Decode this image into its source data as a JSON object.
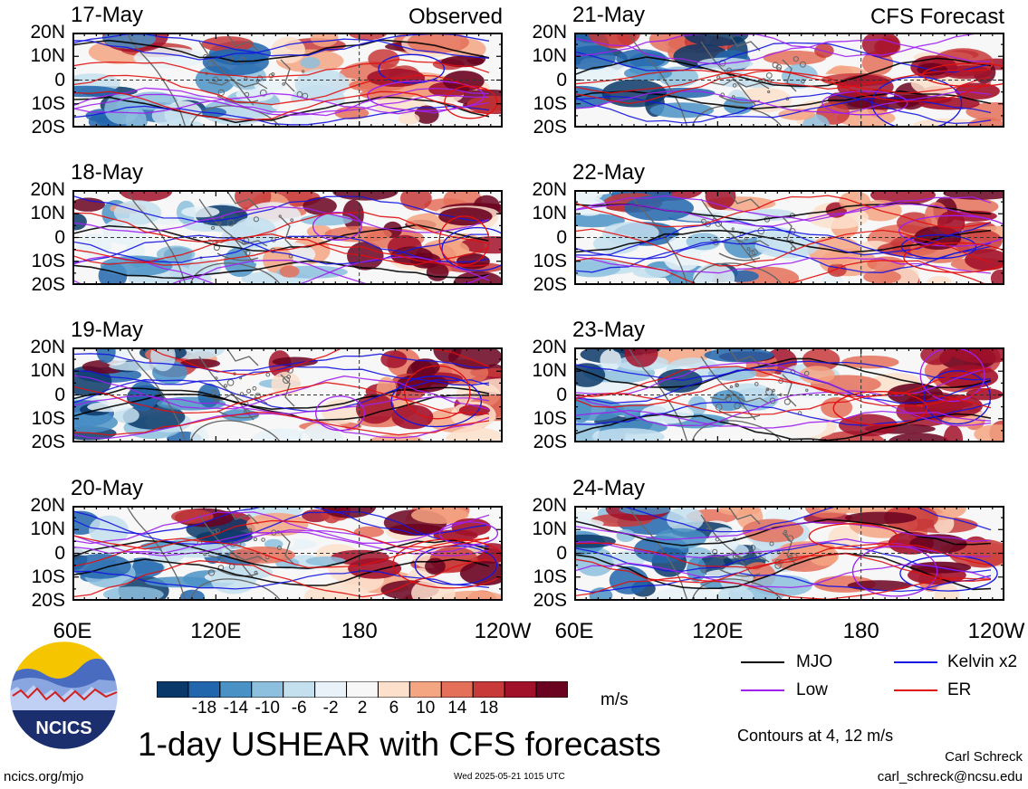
{
  "chart_data": {
    "type": "heatmap",
    "title": "1-day USHEAR with CFS forecasts",
    "variable": "USHEAR",
    "units": "m/s",
    "left_column_label": "Observed",
    "right_column_label": "CFS Forecast",
    "panels": [
      {
        "date": "17-May",
        "column": "Observed"
      },
      {
        "date": "18-May",
        "column": "Observed"
      },
      {
        "date": "19-May",
        "column": "Observed"
      },
      {
        "date": "20-May",
        "column": "Observed"
      },
      {
        "date": "21-May",
        "column": "CFS Forecast"
      },
      {
        "date": "22-May",
        "column": "CFS Forecast"
      },
      {
        "date": "23-May",
        "column": "CFS Forecast"
      },
      {
        "date": "24-May",
        "column": "CFS Forecast"
      }
    ],
    "x_tick_labels": [
      "60E",
      "120E",
      "180",
      "120W"
    ],
    "y_tick_labels": [
      "20N",
      "10N",
      "0",
      "10S",
      "20S"
    ],
    "colorbar_ticks": [
      "-18",
      "-14",
      "-10",
      "-6",
      "-2",
      "2",
      "6",
      "10",
      "14",
      "18"
    ],
    "colorbar_colors": [
      "#0a3868",
      "#2266ad",
      "#4a92c6",
      "#8dc0de",
      "#c4dfee",
      "#e8f2f8",
      "#f7f7f7",
      "#fde0cc",
      "#f4a582",
      "#e4705a",
      "#c83a3a",
      "#a2112a",
      "#6a0220"
    ],
    "legend": [
      {
        "label": "MJO",
        "color": "#000000"
      },
      {
        "label": "Kelvin x2",
        "color": "#1515e0"
      },
      {
        "label": "Low",
        "color": "#a020f0"
      },
      {
        "label": "ER",
        "color": "#e01010"
      }
    ],
    "contour_note": "Contours at 4, 12 m/s"
  },
  "footer": {
    "logo_text": "NCICS",
    "url": "ncics.org/mjo",
    "timestamp": "Wed 2025-05-21 1015 UTC",
    "author": "Carl Schreck",
    "email": "carl_schreck@ncsu.edu"
  }
}
